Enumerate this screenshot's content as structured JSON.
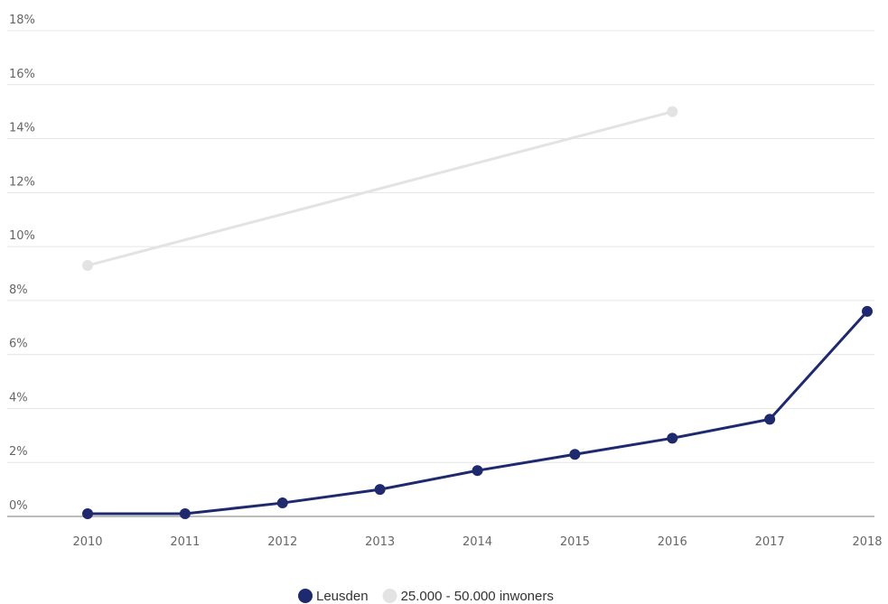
{
  "chart_data": {
    "type": "line",
    "title": "",
    "xlabel": "",
    "ylabel": "",
    "x": [
      "2010",
      "2011",
      "2012",
      "2013",
      "2014",
      "2015",
      "2016",
      "2017",
      "2018"
    ],
    "ylim": [
      0,
      18
    ],
    "y_ticks": [
      "0%",
      "2%",
      "4%",
      "6%",
      "8%",
      "10%",
      "12%",
      "14%",
      "16%",
      "18%"
    ],
    "grid": true,
    "legend_position": "bottom",
    "series": [
      {
        "name": "Leusden",
        "color": "#1f2a6e",
        "values": [
          0.1,
          0.1,
          0.5,
          1.0,
          1.7,
          2.3,
          2.9,
          3.6,
          7.6
        ]
      },
      {
        "name": "25.000 - 50.000 inwoners",
        "color": "#e3e3e3",
        "values": [
          9.3,
          null,
          null,
          null,
          null,
          null,
          15.0,
          null,
          null
        ]
      }
    ]
  }
}
